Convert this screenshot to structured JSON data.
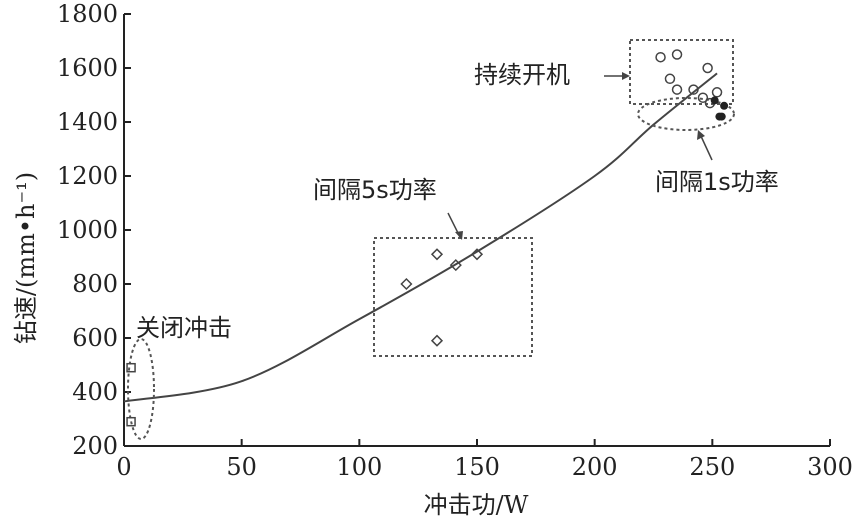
{
  "chart_data": {
    "type": "scatter",
    "xlabel": "冲击功/W",
    "ylabel": "钻速/(mm•h⁻¹)",
    "xlim": [
      0,
      300
    ],
    "ylim": [
      200,
      1800
    ],
    "xticks": [
      0,
      50,
      100,
      150,
      200,
      250,
      300
    ],
    "yticks": [
      200,
      400,
      600,
      800,
      1000,
      1200,
      1400,
      1600,
      1800
    ],
    "grid": false,
    "series": [
      {
        "marker": "square",
        "points": [
          [
            3,
            490
          ],
          [
            3,
            290
          ]
        ]
      },
      {
        "marker": "diamond",
        "points": [
          [
            120,
            800
          ],
          [
            133,
            910
          ],
          [
            141,
            870
          ],
          [
            150,
            910
          ],
          [
            133,
            590
          ]
        ]
      },
      {
        "marker": "circle-open",
        "points": [
          [
            228,
            1640
          ],
          [
            235,
            1650
          ],
          [
            232,
            1560
          ],
          [
            235,
            1520
          ],
          [
            242,
            1520
          ],
          [
            246,
            1490
          ],
          [
            248,
            1600
          ],
          [
            252,
            1510
          ],
          [
            249,
            1470
          ]
        ]
      },
      {
        "marker": "circle-filled",
        "points": [
          [
            251,
            1480
          ],
          [
            253,
            1420
          ],
          [
            255,
            1460
          ],
          [
            254,
            1420
          ]
        ]
      }
    ],
    "fit_curve": [
      [
        0,
        365
      ],
      [
        50,
        440
      ],
      [
        100,
        670
      ],
      [
        150,
        920
      ],
      [
        200,
        1200
      ],
      [
        225,
        1390
      ],
      [
        252,
        1580
      ]
    ],
    "annotations": [
      "关闭冲击",
      "间隔5s功率",
      "持续开机",
      "间隔1s功率"
    ]
  }
}
